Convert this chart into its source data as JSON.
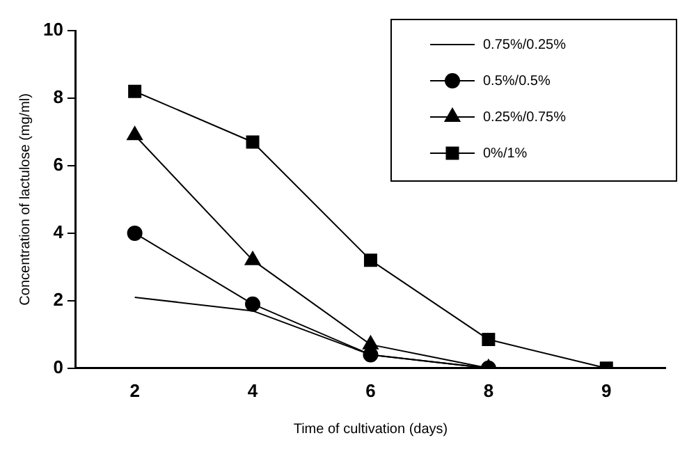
{
  "chart_data": {
    "type": "line",
    "xlabel": "Time of cultivation (days)",
    "ylabel": "Concentration of lactulose (mg/ml)",
    "categories": [
      "2",
      "4",
      "6",
      "8",
      "9"
    ],
    "ylim": [
      0,
      10
    ],
    "yticks": [
      0,
      2,
      4,
      6,
      8,
      10
    ],
    "grid": false,
    "legend": "top right",
    "series": [
      {
        "name": "0.75%/0.25%",
        "color": "#000000",
        "values": [
          2.1,
          1.7,
          0.4,
          0,
          null
        ]
      },
      {
        "name": "0.5%/0.5%",
        "color": "#000000",
        "marker": "circle",
        "values": [
          4,
          1.9,
          0.4,
          0,
          null
        ]
      },
      {
        "name": "0.25%/0.75%",
        "color": "#000000",
        "marker": "triangle",
        "values": [
          6.9,
          3.2,
          0.7,
          0,
          null
        ]
      },
      {
        "name": "0%/1%",
        "color": "#000000",
        "marker": "square",
        "values": [
          8.2,
          6.7,
          3.2,
          0.85,
          0
        ]
      }
    ]
  }
}
